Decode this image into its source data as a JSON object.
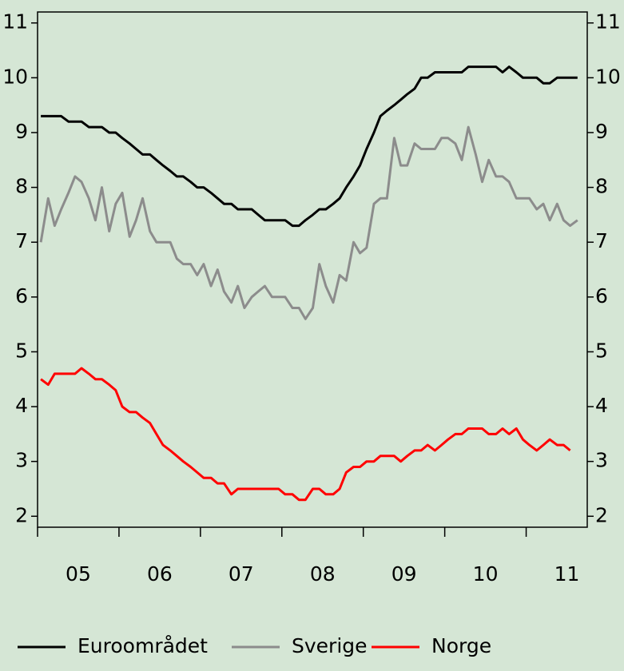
{
  "chart_data": {
    "type": "line",
    "xlim": [
      2005,
      2011.75
    ],
    "xticks": [
      2005,
      2006,
      2007,
      2008,
      2009,
      2010,
      2011
    ],
    "xlabels": [
      {
        "value": 2005.5,
        "label": "05"
      },
      {
        "value": 2006.5,
        "label": "06"
      },
      {
        "value": 2007.5,
        "label": "07"
      },
      {
        "value": 2008.5,
        "label": "08"
      },
      {
        "value": 2009.5,
        "label": "09"
      },
      {
        "value": 2010.5,
        "label": "10"
      },
      {
        "value": 2011.5,
        "label": "11"
      }
    ],
    "ylim": [
      1.8,
      11.2
    ],
    "yticks": [
      2,
      3,
      4,
      5,
      6,
      7,
      8,
      9,
      10,
      11
    ],
    "y2lim": [
      1.8,
      11.2
    ],
    "y2ticks": [
      2,
      3,
      4,
      5,
      6,
      7,
      8,
      9,
      10,
      11
    ],
    "legend": "bottom",
    "x": [
      2005.04,
      2005.13,
      2005.21,
      2005.29,
      2005.38,
      2005.46,
      2005.54,
      2005.63,
      2005.71,
      2005.79,
      2005.88,
      2005.96,
      2006.04,
      2006.13,
      2006.21,
      2006.29,
      2006.38,
      2006.46,
      2006.54,
      2006.63,
      2006.71,
      2006.79,
      2006.88,
      2006.96,
      2007.04,
      2007.13,
      2007.21,
      2007.29,
      2007.38,
      2007.46,
      2007.54,
      2007.63,
      2007.71,
      2007.79,
      2007.88,
      2007.96,
      2008.04,
      2008.13,
      2008.21,
      2008.29,
      2008.38,
      2008.46,
      2008.54,
      2008.63,
      2008.71,
      2008.79,
      2008.88,
      2008.96,
      2009.04,
      2009.13,
      2009.21,
      2009.29,
      2009.38,
      2009.46,
      2009.54,
      2009.63,
      2009.71,
      2009.79,
      2009.88,
      2009.96,
      2010.04,
      2010.13,
      2010.21,
      2010.29,
      2010.38,
      2010.46,
      2010.54,
      2010.63,
      2010.71,
      2010.79,
      2010.88,
      2010.96,
      2011.04,
      2011.13,
      2011.21,
      2011.29,
      2011.38,
      2011.46,
      2011.54,
      2011.63
    ],
    "series": [
      {
        "name": "Euroområdet",
        "color": "#000000",
        "values": [
          9.3,
          9.3,
          9.3,
          9.3,
          9.2,
          9.2,
          9.2,
          9.1,
          9.1,
          9.1,
          9.0,
          9.0,
          8.9,
          8.8,
          8.7,
          8.6,
          8.6,
          8.5,
          8.4,
          8.3,
          8.2,
          8.2,
          8.1,
          8.0,
          8.0,
          7.9,
          7.8,
          7.7,
          7.7,
          7.6,
          7.6,
          7.6,
          7.5,
          7.4,
          7.4,
          7.4,
          7.4,
          7.3,
          7.3,
          7.4,
          7.5,
          7.6,
          7.6,
          7.7,
          7.8,
          8.0,
          8.2,
          8.4,
          8.7,
          9.0,
          9.3,
          9.4,
          9.5,
          9.6,
          9.7,
          9.8,
          10.0,
          10.0,
          10.1,
          10.1,
          10.1,
          10.1,
          10.1,
          10.2,
          10.2,
          10.2,
          10.2,
          10.2,
          10.1,
          10.2,
          10.1,
          10.0,
          10.0,
          10.0,
          9.9,
          9.9,
          10.0,
          10.0,
          10.0,
          10.0
        ]
      },
      {
        "name": "Sverige",
        "color": "#8c8c8c",
        "values": [
          7.0,
          7.8,
          7.3,
          7.6,
          7.9,
          8.2,
          8.1,
          7.8,
          7.4,
          8.0,
          7.2,
          7.7,
          7.9,
          7.1,
          7.4,
          7.8,
          7.2,
          7.0,
          7.0,
          7.0,
          6.7,
          6.6,
          6.6,
          6.4,
          6.6,
          6.2,
          6.5,
          6.1,
          5.9,
          6.2,
          5.8,
          6.0,
          6.1,
          6.2,
          6.0,
          6.0,
          6.0,
          5.8,
          5.8,
          5.6,
          5.8,
          6.6,
          6.2,
          5.9,
          6.4,
          6.3,
          7.0,
          6.8,
          6.9,
          7.7,
          7.8,
          7.8,
          8.9,
          8.4,
          8.4,
          8.8,
          8.7,
          8.7,
          8.7,
          8.9,
          8.9,
          8.8,
          8.5,
          9.1,
          8.6,
          8.1,
          8.5,
          8.2,
          8.2,
          8.1,
          7.8,
          7.8,
          7.8,
          7.6,
          7.7,
          7.4,
          7.7,
          7.4,
          7.3,
          7.4
        ]
      },
      {
        "name": "Norge",
        "color": "#ff0000",
        "values": [
          4.5,
          4.4,
          4.6,
          4.6,
          4.6,
          4.6,
          4.7,
          4.6,
          4.5,
          4.5,
          4.4,
          4.3,
          4.0,
          3.9,
          3.9,
          3.8,
          3.7,
          3.5,
          3.3,
          3.2,
          3.1,
          3.0,
          2.9,
          2.8,
          2.7,
          2.7,
          2.6,
          2.6,
          2.4,
          2.5,
          2.5,
          2.5,
          2.5,
          2.5,
          2.5,
          2.5,
          2.4,
          2.4,
          2.3,
          2.3,
          2.5,
          2.5,
          2.4,
          2.4,
          2.5,
          2.8,
          2.9,
          2.9,
          3.0,
          3.0,
          3.1,
          3.1,
          3.1,
          3.0,
          3.1,
          3.2,
          3.2,
          3.3,
          3.2,
          3.3,
          3.4,
          3.5,
          3.5,
          3.6,
          3.6,
          3.6,
          3.5,
          3.5,
          3.6,
          3.5,
          3.6,
          3.4,
          3.3,
          3.2,
          3.3,
          3.4,
          3.3,
          3.3,
          3.2,
          null
        ]
      }
    ]
  }
}
